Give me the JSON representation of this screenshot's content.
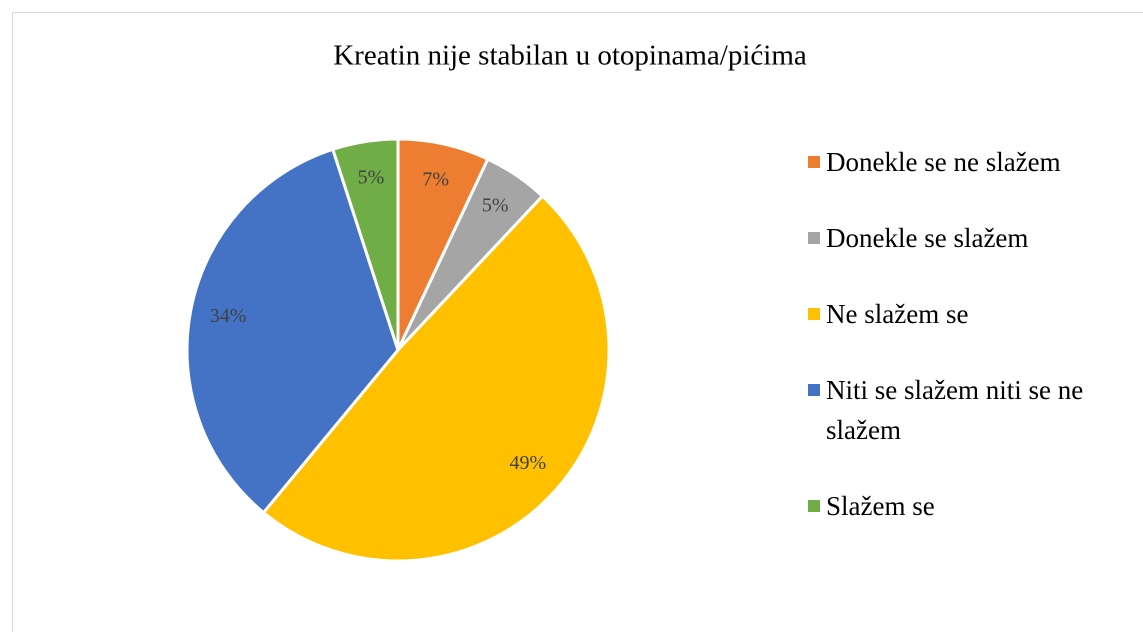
{
  "chart_data": {
    "type": "pie",
    "title": "Kreatin nije stabilan u otopinama/pićima",
    "categories": [
      "Donekle se ne slažem",
      "Donekle se slažem",
      "Ne slažem se",
      "Niti se slažem niti se ne slažem",
      "Slažem se"
    ],
    "values": [
      7,
      5,
      49,
      34,
      5
    ],
    "value_labels": [
      "7%",
      "5%",
      "49%",
      "34%",
      "5%"
    ],
    "colors": [
      "#ed7d31",
      "#a5a5a5",
      "#ffc000",
      "#4472c4",
      "#70ad47"
    ],
    "legend": "right"
  }
}
